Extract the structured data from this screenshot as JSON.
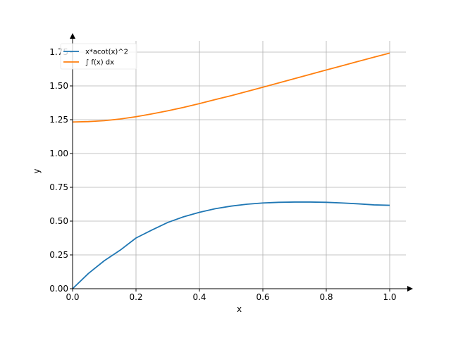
{
  "chart_data": {
    "type": "line",
    "title": "",
    "xlabel": "x",
    "ylabel": "y",
    "xlim": [
      0.0,
      1.05
    ],
    "ylim": [
      0.0,
      1.8
    ],
    "x_ticks": [
      "0.0",
      "0.2",
      "0.4",
      "0.6",
      "0.8",
      "1.0"
    ],
    "y_ticks": [
      "0.00",
      "0.25",
      "0.50",
      "0.75",
      "1.00",
      "1.25",
      "1.50",
      "1.75"
    ],
    "grid": true,
    "legend_position": "top-left",
    "series": [
      {
        "name": "x*acot(x)^2",
        "color": "#1f77b4",
        "x": [
          0.0,
          0.05,
          0.1,
          0.15,
          0.2,
          0.25,
          0.3,
          0.35,
          0.4,
          0.45,
          0.5,
          0.55,
          0.6,
          0.65,
          0.7,
          0.75,
          0.8,
          0.85,
          0.9,
          0.95,
          1.0
        ],
        "y": [
          0.0,
          0.113,
          0.207,
          0.285,
          0.375,
          0.434,
          0.49,
          0.532,
          0.565,
          0.592,
          0.611,
          0.625,
          0.634,
          0.639,
          0.641,
          0.641,
          0.639,
          0.634,
          0.628,
          0.62,
          0.617
        ]
      },
      {
        "name": "∫ f(x) dx",
        "color": "#ff7f0e",
        "x": [
          0.0,
          0.05,
          0.1,
          0.15,
          0.2,
          0.25,
          0.3,
          0.35,
          0.4,
          0.45,
          0.5,
          0.55,
          0.6,
          0.65,
          0.7,
          0.75,
          0.8,
          0.85,
          0.9,
          0.95,
          1.0
        ],
        "y": [
          1.233,
          1.236,
          1.243,
          1.255,
          1.272,
          1.293,
          1.316,
          1.341,
          1.369,
          1.399,
          1.428,
          1.459,
          1.49,
          1.522,
          1.554,
          1.586,
          1.618,
          1.649,
          1.681,
          1.712,
          1.743
        ]
      }
    ]
  }
}
